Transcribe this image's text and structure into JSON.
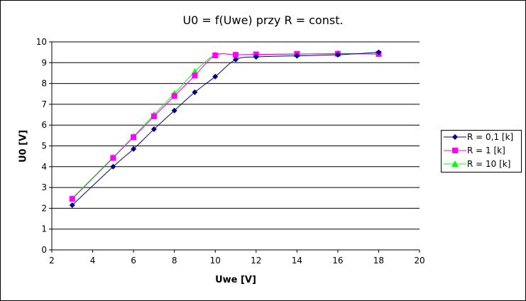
{
  "chart_data": {
    "type": "line",
    "title": "U0 = f(Uwe) przy R = const.",
    "xlabel": "Uwe [V]",
    "ylabel": "U0 [V]",
    "xlim": [
      2,
      20
    ],
    "ylim": [
      0,
      10
    ],
    "xticks": [
      2,
      4,
      6,
      8,
      10,
      12,
      14,
      16,
      18,
      20
    ],
    "yticks": [
      0,
      1,
      2,
      3,
      4,
      5,
      6,
      7,
      8,
      9,
      10
    ],
    "grid": "horizontal major",
    "legend_position": "right",
    "series": [
      {
        "name": "R = 0,1 [k]",
        "color": "#000080",
        "marker": "diamond",
        "x": [
          3,
          5,
          6,
          7,
          8,
          9,
          10,
          11,
          12,
          14,
          16,
          18
        ],
        "y": [
          2.15,
          4.0,
          4.85,
          5.8,
          6.7,
          7.58,
          8.33,
          9.15,
          9.28,
          9.33,
          9.38,
          9.5
        ]
      },
      {
        "name": "R = 1 [k]",
        "color": "#ff00ff",
        "marker": "square",
        "x": [
          3,
          5,
          6,
          7,
          8,
          9,
          10,
          11,
          12,
          14,
          16,
          18
        ],
        "y": [
          2.45,
          4.42,
          5.42,
          6.42,
          7.4,
          8.38,
          9.35,
          9.38,
          9.4,
          9.42,
          9.43,
          9.42
        ]
      },
      {
        "name": "R = 10  [k]",
        "color": "#00ff00",
        "marker": "triangle",
        "x": [
          3,
          5,
          6,
          7,
          8,
          9,
          10,
          11,
          12,
          14,
          16,
          18
        ],
        "y": [
          2.48,
          4.45,
          5.46,
          6.5,
          7.52,
          8.57,
          9.38,
          9.38,
          9.38,
          9.4,
          9.45,
          9.4
        ]
      }
    ]
  }
}
